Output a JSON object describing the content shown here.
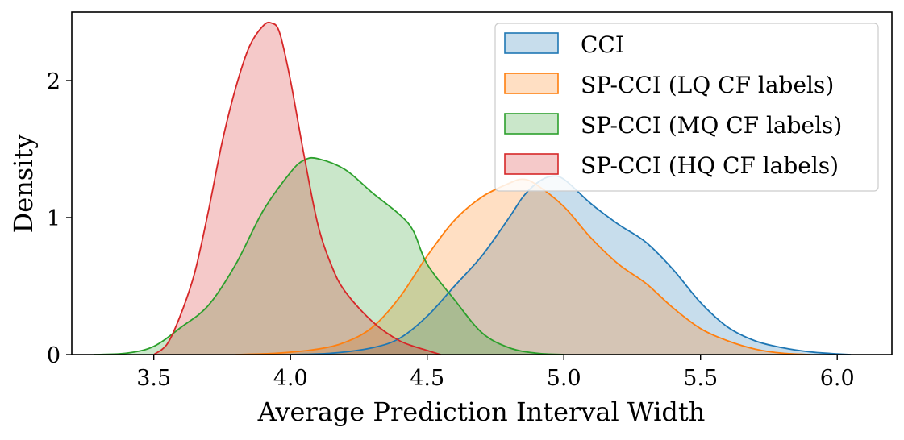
{
  "chart_data": {
    "type": "area",
    "kind": "kde",
    "title": "",
    "xlabel": "Average Prediction Interval Width",
    "ylabel": "Density",
    "xlim": [
      3.2,
      6.2
    ],
    "ylim": [
      0,
      2.5
    ],
    "xticks": [
      3.5,
      4.0,
      4.5,
      5.0,
      5.5,
      6.0
    ],
    "xtick_labels": [
      "3.5",
      "4.0",
      "4.5",
      "5.0",
      "5.5",
      "6.0"
    ],
    "yticks": [
      0,
      1,
      2
    ],
    "ytick_labels": [
      "0",
      "1",
      "2"
    ],
    "legend_position": "top-right",
    "series": [
      {
        "name": "CCI",
        "color": "#1f77b4",
        "points": [
          [
            4.0,
            0.0
          ],
          [
            4.15,
            0.01
          ],
          [
            4.3,
            0.05
          ],
          [
            4.4,
            0.12
          ],
          [
            4.5,
            0.28
          ],
          [
            4.6,
            0.5
          ],
          [
            4.7,
            0.72
          ],
          [
            4.8,
            1.0
          ],
          [
            4.85,
            1.15
          ],
          [
            4.9,
            1.25
          ],
          [
            4.95,
            1.3
          ],
          [
            5.0,
            1.28
          ],
          [
            5.1,
            1.1
          ],
          [
            5.2,
            0.95
          ],
          [
            5.3,
            0.82
          ],
          [
            5.4,
            0.62
          ],
          [
            5.5,
            0.38
          ],
          [
            5.6,
            0.2
          ],
          [
            5.7,
            0.1
          ],
          [
            5.8,
            0.05
          ],
          [
            5.9,
            0.02
          ],
          [
            6.0,
            0.005
          ],
          [
            6.05,
            0.0
          ]
        ]
      },
      {
        "name": "SP-CCI (LQ CF labels)",
        "color": "#ff7f0e",
        "points": [
          [
            3.8,
            0.0
          ],
          [
            3.95,
            0.01
          ],
          [
            4.1,
            0.04
          ],
          [
            4.2,
            0.09
          ],
          [
            4.3,
            0.2
          ],
          [
            4.4,
            0.42
          ],
          [
            4.5,
            0.72
          ],
          [
            4.6,
            0.98
          ],
          [
            4.7,
            1.15
          ],
          [
            4.8,
            1.25
          ],
          [
            4.85,
            1.28
          ],
          [
            4.9,
            1.24
          ],
          [
            5.0,
            1.08
          ],
          [
            5.1,
            0.85
          ],
          [
            5.2,
            0.66
          ],
          [
            5.3,
            0.52
          ],
          [
            5.4,
            0.34
          ],
          [
            5.5,
            0.19
          ],
          [
            5.6,
            0.1
          ],
          [
            5.7,
            0.04
          ],
          [
            5.8,
            0.01
          ],
          [
            5.9,
            0.0
          ]
        ]
      },
      {
        "name": "SP-CCI (MQ CF labels)",
        "color": "#2ca02c",
        "points": [
          [
            3.28,
            0.0
          ],
          [
            3.4,
            0.01
          ],
          [
            3.5,
            0.06
          ],
          [
            3.6,
            0.2
          ],
          [
            3.7,
            0.36
          ],
          [
            3.8,
            0.66
          ],
          [
            3.9,
            1.05
          ],
          [
            4.0,
            1.33
          ],
          [
            4.05,
            1.42
          ],
          [
            4.1,
            1.43
          ],
          [
            4.2,
            1.35
          ],
          [
            4.3,
            1.18
          ],
          [
            4.4,
            1.02
          ],
          [
            4.45,
            0.9
          ],
          [
            4.5,
            0.66
          ],
          [
            4.6,
            0.4
          ],
          [
            4.7,
            0.16
          ],
          [
            4.8,
            0.05
          ],
          [
            4.9,
            0.01
          ],
          [
            5.0,
            0.0
          ]
        ]
      },
      {
        "name": "SP-CCI (HQ CF labels)",
        "color": "#d62728",
        "points": [
          [
            3.5,
            0.0
          ],
          [
            3.55,
            0.08
          ],
          [
            3.6,
            0.3
          ],
          [
            3.65,
            0.6
          ],
          [
            3.7,
            1.05
          ],
          [
            3.75,
            1.55
          ],
          [
            3.8,
            1.95
          ],
          [
            3.85,
            2.25
          ],
          [
            3.9,
            2.4
          ],
          [
            3.93,
            2.42
          ],
          [
            3.96,
            2.35
          ],
          [
            4.0,
            2.0
          ],
          [
            4.05,
            1.45
          ],
          [
            4.1,
            0.95
          ],
          [
            4.15,
            0.65
          ],
          [
            4.2,
            0.46
          ],
          [
            4.3,
            0.24
          ],
          [
            4.4,
            0.1
          ],
          [
            4.5,
            0.03
          ],
          [
            4.55,
            0.0
          ]
        ]
      }
    ]
  }
}
